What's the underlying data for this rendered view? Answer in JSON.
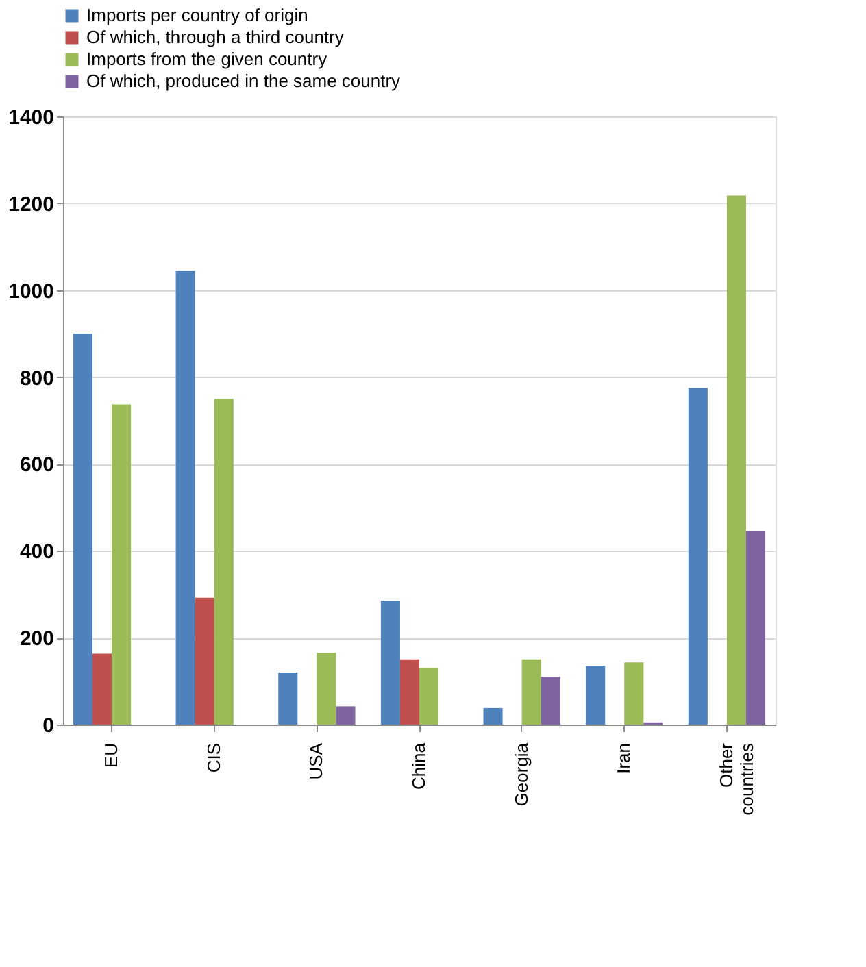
{
  "chart_data": {
    "type": "bar",
    "categories": [
      "EU",
      "CIS",
      "USA",
      "China",
      "Georgia",
      "Iran",
      "Other countries"
    ],
    "series": [
      {
        "name": "Imports per country of origin",
        "color": "#4f81bd",
        "values": [
          900,
          1045,
          120,
          285,
          38,
          135,
          775
        ]
      },
      {
        "name": "Of which, through a third country",
        "color": "#c0504d",
        "values": [
          163,
          292,
          null,
          150,
          null,
          null,
          null
        ]
      },
      {
        "name": "Imports from the given country",
        "color": "#9bbb59",
        "values": [
          737,
          750,
          165,
          130,
          150,
          143,
          1218
        ]
      },
      {
        "name": "Of which, produced in the same country",
        "color": "#8064a2",
        "values": [
          null,
          null,
          42,
          null,
          110,
          5,
          445
        ]
      }
    ],
    "ylim": [
      0,
      1400
    ],
    "yticks": [
      0,
      200,
      400,
      600,
      800,
      1000,
      1200,
      1400
    ],
    "grid": "y",
    "legend": "top"
  }
}
